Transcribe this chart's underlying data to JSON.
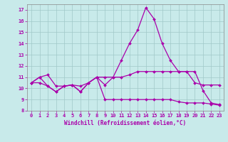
{
  "xlabel": "Windchill (Refroidissement éolien,°C)",
  "background_color": "#c8eaea",
  "grid_color": "#a0c8c8",
  "line_color": "#aa00aa",
  "spine_color": "#888888",
  "xlim": [
    -0.5,
    23.5
  ],
  "ylim": [
    8,
    17.5
  ],
  "yticks": [
    8,
    9,
    10,
    11,
    12,
    13,
    14,
    15,
    16,
    17
  ],
  "xticks": [
    0,
    1,
    2,
    3,
    4,
    5,
    6,
    7,
    8,
    9,
    10,
    11,
    12,
    13,
    14,
    15,
    16,
    17,
    18,
    19,
    20,
    21,
    22,
    23
  ],
  "line1_x": [
    0,
    1,
    2,
    3,
    4,
    5,
    6,
    7,
    8,
    9,
    10,
    11,
    12,
    13,
    14,
    15,
    16,
    17,
    18,
    19,
    20,
    21,
    22,
    23
  ],
  "line1_y": [
    10.5,
    11.0,
    11.2,
    10.2,
    10.2,
    10.3,
    10.2,
    10.5,
    11.0,
    11.0,
    11.0,
    11.0,
    11.2,
    11.5,
    11.5,
    11.5,
    11.5,
    11.5,
    11.5,
    11.5,
    10.5,
    10.3,
    10.3,
    10.3
  ],
  "line2_x": [
    0,
    1,
    2,
    3,
    4,
    5,
    6,
    7,
    8,
    9,
    10,
    11,
    12,
    13,
    14,
    15,
    16,
    17,
    18,
    19,
    20,
    21,
    22,
    23
  ],
  "line2_y": [
    10.5,
    11.0,
    10.2,
    9.7,
    10.2,
    10.3,
    9.7,
    10.5,
    11.0,
    10.3,
    11.0,
    12.5,
    14.0,
    15.2,
    17.2,
    16.2,
    14.0,
    12.5,
    11.5,
    11.5,
    11.5,
    9.8,
    8.7,
    8.55
  ],
  "line3_x": [
    0,
    1,
    2,
    3,
    4,
    5,
    6,
    7,
    8,
    9,
    10,
    11,
    12,
    13,
    14,
    15,
    16,
    17,
    18,
    19,
    20,
    21,
    22,
    23
  ],
  "line3_y": [
    10.5,
    10.5,
    10.2,
    9.7,
    10.2,
    10.3,
    9.7,
    10.5,
    11.0,
    9.0,
    9.0,
    9.0,
    9.0,
    9.0,
    9.0,
    9.0,
    9.0,
    9.0,
    8.8,
    8.7,
    8.7,
    8.7,
    8.6,
    8.5
  ],
  "marker_size": 2.0,
  "line_width": 0.9,
  "xlabel_fontsize": 5.5,
  "tick_fontsize": 5.0
}
